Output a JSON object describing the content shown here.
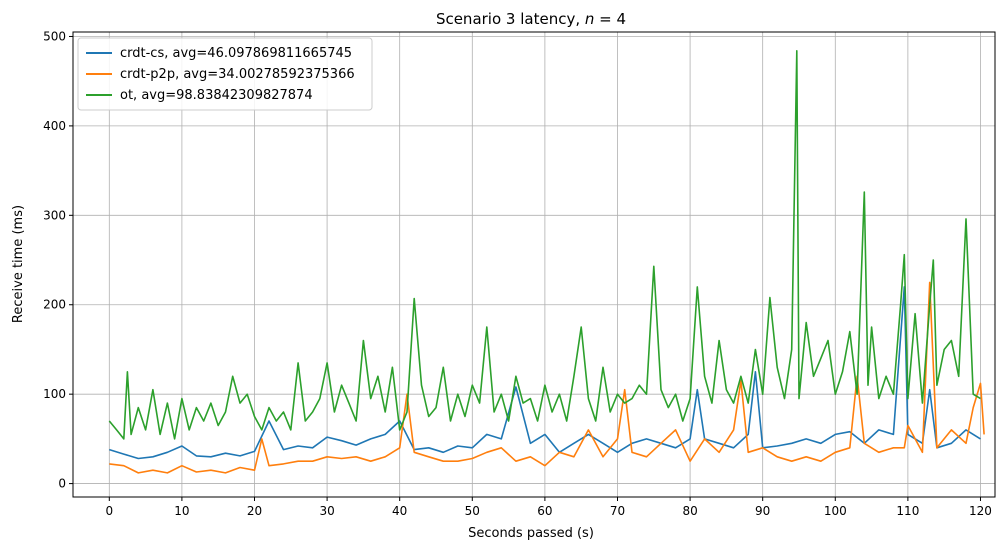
{
  "chart_data": {
    "type": "line",
    "title": "Scenario 3 latency, n = 4",
    "title_prefix": "Scenario 3 latency, ",
    "title_italic": "n",
    "title_suffix": " = 4",
    "xlabel": "Seconds passed (s)",
    "ylabel": "Receive time (ms)",
    "xlim": [
      -5,
      122
    ],
    "ylim": [
      -15,
      505
    ],
    "xticks": [
      0,
      10,
      20,
      30,
      40,
      50,
      60,
      70,
      80,
      90,
      100,
      110,
      120
    ],
    "yticks": [
      0,
      100,
      200,
      300,
      400,
      500
    ],
    "grid": true,
    "legend_position": "upper-left",
    "series": [
      {
        "name": "crdt-cs, avg=46.097869811665745",
        "color": "#1f77b4",
        "x": [
          0,
          2,
          4,
          6,
          8,
          10,
          12,
          14,
          16,
          18,
          20,
          22,
          24,
          26,
          28,
          30,
          32,
          34,
          36,
          38,
          40,
          42,
          44,
          46,
          48,
          50,
          52,
          54,
          56,
          58,
          60,
          62,
          64,
          66,
          68,
          70,
          72,
          74,
          76,
          78,
          80,
          81,
          82,
          84,
          86,
          88,
          89,
          90,
          92,
          94,
          96,
          98,
          100,
          102,
          104,
          106,
          108,
          109.5,
          110,
          112,
          113,
          114,
          116,
          118,
          120
        ],
        "y": [
          38,
          33,
          28,
          30,
          35,
          42,
          31,
          30,
          34,
          31,
          36,
          70,
          38,
          42,
          40,
          52,
          48,
          43,
          50,
          55,
          70,
          38,
          40,
          35,
          42,
          40,
          55,
          50,
          108,
          45,
          55,
          35,
          45,
          55,
          45,
          35,
          45,
          50,
          45,
          40,
          50,
          105,
          50,
          45,
          40,
          55,
          125,
          40,
          42,
          45,
          50,
          45,
          55,
          58,
          45,
          60,
          55,
          220,
          55,
          45,
          105,
          40,
          45,
          60,
          50
        ]
      },
      {
        "name": "crdt-p2p, avg=34.00278592375366",
        "color": "#ff7f0e",
        "x": [
          0,
          2,
          4,
          6,
          8,
          10,
          12,
          14,
          16,
          18,
          20,
          21,
          22,
          24,
          26,
          28,
          30,
          32,
          34,
          36,
          38,
          40,
          41,
          42,
          44,
          46,
          48,
          50,
          52,
          54,
          56,
          58,
          60,
          62,
          64,
          66,
          68,
          70,
          71,
          72,
          74,
          76,
          78,
          80,
          82,
          84,
          86,
          87,
          88,
          90,
          92,
          94,
          96,
          98,
          100,
          102,
          103,
          104,
          106,
          108,
          109.5,
          110,
          112,
          113,
          114,
          116,
          118,
          119,
          120,
          120.5
        ],
        "y": [
          22,
          20,
          12,
          15,
          12,
          20,
          13,
          15,
          12,
          18,
          15,
          50,
          20,
          22,
          25,
          25,
          30,
          28,
          30,
          25,
          30,
          40,
          100,
          35,
          30,
          25,
          25,
          28,
          35,
          40,
          25,
          30,
          20,
          35,
          30,
          60,
          30,
          50,
          105,
          35,
          30,
          45,
          60,
          25,
          50,
          35,
          60,
          115,
          35,
          40,
          30,
          25,
          30,
          25,
          35,
          40,
          120,
          45,
          35,
          40,
          40,
          65,
          35,
          225,
          40,
          60,
          45,
          85,
          112,
          55
        ]
      },
      {
        "name": "ot, avg=98.83842309827874",
        "color": "#2ca02c",
        "x": [
          0,
          1,
          2,
          2.5,
          3,
          4,
          5,
          6,
          7,
          8,
          9,
          10,
          11,
          12,
          13,
          14,
          15,
          16,
          17,
          18,
          19,
          20,
          21,
          22,
          23,
          24,
          25,
          26,
          27,
          28,
          29,
          30,
          31,
          32,
          33,
          34,
          35,
          36,
          37,
          38,
          39,
          40,
          41,
          42,
          43,
          44,
          45,
          46,
          47,
          48,
          49,
          50,
          51,
          52,
          53,
          54,
          55,
          56,
          57,
          58,
          59,
          60,
          61,
          62,
          63,
          64,
          65,
          66,
          67,
          68,
          69,
          70,
          71,
          72,
          73,
          74,
          75,
          76,
          77,
          78,
          79,
          80,
          81,
          82,
          83,
          84,
          85,
          86,
          87,
          88,
          89,
          90,
          91,
          92,
          93,
          94,
          94.7,
          95,
          96,
          97,
          98,
          99,
          100,
          101,
          102,
          103,
          104,
          104.5,
          105,
          106,
          107,
          108,
          109,
          109.5,
          110,
          111,
          112,
          113,
          113.5,
          114,
          115,
          116,
          117,
          118,
          119,
          120
        ],
        "y": [
          70,
          60,
          50,
          125,
          55,
          85,
          60,
          105,
          55,
          90,
          50,
          95,
          60,
          85,
          70,
          90,
          65,
          80,
          120,
          90,
          100,
          75,
          60,
          85,
          70,
          80,
          60,
          135,
          70,
          80,
          95,
          135,
          80,
          110,
          90,
          70,
          160,
          95,
          120,
          80,
          130,
          60,
          80,
          207,
          110,
          75,
          85,
          130,
          70,
          100,
          75,
          110,
          90,
          175,
          80,
          100,
          70,
          120,
          90,
          95,
          70,
          110,
          80,
          100,
          70,
          120,
          175,
          95,
          70,
          130,
          80,
          100,
          90,
          95,
          110,
          100,
          243,
          105,
          85,
          100,
          70,
          95,
          220,
          120,
          90,
          160,
          105,
          90,
          120,
          90,
          150,
          100,
          208,
          130,
          95,
          150,
          484,
          95,
          180,
          120,
          140,
          160,
          100,
          125,
          170,
          100,
          326,
          110,
          175,
          95,
          120,
          100,
          200,
          256,
          95,
          190,
          90,
          200,
          250,
          110,
          150,
          160,
          120,
          296,
          100,
          95
        ]
      }
    ]
  }
}
